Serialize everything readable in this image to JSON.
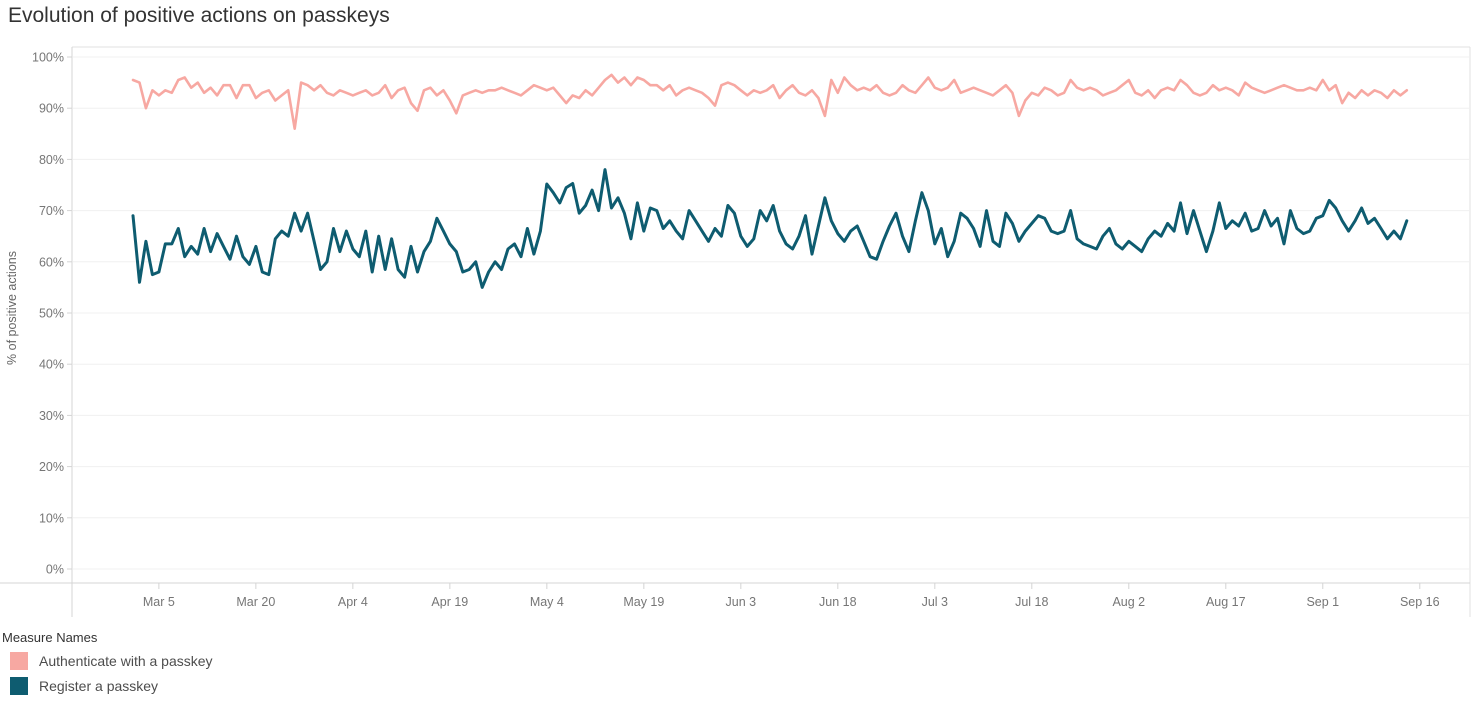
{
  "title": "Evolution of positive actions on passkeys",
  "legend": {
    "title": "Measure Names",
    "items": [
      {
        "label": "Authenticate with a passkey",
        "color": "#f7a8a2"
      },
      {
        "label": "Register a passkey",
        "color": "#0e5c70"
      }
    ]
  },
  "chart_data": {
    "type": "line",
    "title": "Evolution of positive actions on passkeys",
    "xlabel": "",
    "ylabel": "% of positive actions",
    "ylim": [
      0,
      100
    ],
    "grid": true,
    "legend_position": "bottom-left",
    "y_tick_labels": [
      "0%",
      "10%",
      "20%",
      "30%",
      "40%",
      "50%",
      "60%",
      "70%",
      "80%",
      "90%",
      "100%"
    ],
    "y_tick_values": [
      0,
      10,
      20,
      30,
      40,
      50,
      60,
      70,
      80,
      90,
      100
    ],
    "x_tick_labels": [
      "Mar 5",
      "Mar 20",
      "Apr 4",
      "Apr 19",
      "May 4",
      "May 19",
      "Jun 3",
      "Jun 18",
      "Jul 3",
      "Jul 18",
      "Aug 2",
      "Aug 17",
      "Sep 1",
      "Sep 16"
    ],
    "x_tick_day_index": [
      4,
      19,
      34,
      49,
      64,
      79,
      94,
      109,
      124,
      139,
      154,
      169,
      184,
      199
    ],
    "x_start_label": "Mar 1",
    "x_end_label": "Sep 14",
    "x_unit": "day",
    "series": [
      {
        "name": "Authenticate with a passkey",
        "color": "#f7a8a2",
        "stroke_width": 2.6,
        "values": [
          95.5,
          95,
          90,
          93.5,
          92.5,
          93.5,
          93,
          95.5,
          96,
          94,
          95,
          93,
          94,
          92.5,
          94.5,
          94.5,
          92,
          94.5,
          94.5,
          92,
          93,
          93.5,
          91.5,
          92.5,
          93.5,
          86,
          95,
          94.5,
          93.5,
          94.5,
          93,
          92.5,
          93.5,
          93,
          92.5,
          93,
          93.5,
          92.5,
          93,
          94.5,
          92,
          93.5,
          94,
          91,
          89.5,
          93.5,
          94,
          92.5,
          93.5,
          91.5,
          89,
          92.5,
          93,
          93.5,
          93,
          93.5,
          93.5,
          94,
          93.5,
          93,
          92.5,
          93.5,
          94.5,
          94,
          93.5,
          94,
          92.5,
          91,
          92.5,
          92,
          93.5,
          92.5,
          94,
          95.5,
          96.5,
          95,
          96,
          94.5,
          96,
          95.5,
          94.5,
          94.5,
          93.5,
          94.5,
          92.5,
          93.5,
          94,
          93.5,
          93,
          92,
          90.5,
          94.5,
          95,
          94.5,
          93.5,
          92.5,
          93.5,
          93,
          93.5,
          94.5,
          92,
          93.5,
          94.5,
          93,
          92.5,
          93.5,
          92,
          88.5,
          95.5,
          93,
          96,
          94.5,
          93.5,
          94,
          93.5,
          94.5,
          93,
          92.5,
          93,
          94.5,
          93.5,
          93,
          94.5,
          96,
          94,
          93.5,
          94,
          95.5,
          93,
          93.5,
          94,
          93.5,
          93,
          92.5,
          93.5,
          94.5,
          93,
          88.5,
          91.5,
          93,
          92.5,
          94,
          93.5,
          92.5,
          93,
          95.5,
          94,
          93.5,
          94,
          93.5,
          92.5,
          93,
          93.5,
          94.5,
          95.5,
          93,
          92.5,
          93.5,
          92,
          93.5,
          94,
          93.5,
          95.5,
          94.5,
          93,
          92.5,
          93,
          94.5,
          93.5,
          94,
          93.5,
          92.5,
          95,
          94,
          93.5,
          93,
          93.5,
          94,
          94.5,
          94,
          93.5,
          93.5,
          94,
          93.5,
          95.5,
          93.5,
          94.5,
          91,
          93,
          92,
          93.5,
          92.5,
          93.5,
          93,
          92,
          93.5,
          92.5,
          93.5
        ]
      },
      {
        "name": "Register a passkey",
        "color": "#0e5c70",
        "stroke_width": 3,
        "values": [
          69,
          56,
          64,
          57.5,
          58,
          63.5,
          63.5,
          66.5,
          61,
          63,
          61.5,
          66.5,
          62,
          65.5,
          63,
          60.5,
          65,
          61,
          59.5,
          63,
          58,
          57.5,
          64.5,
          66,
          65,
          69.5,
          66,
          69.5,
          64,
          58.5,
          60,
          66.5,
          62,
          66,
          62.5,
          61,
          66,
          58,
          65,
          58.5,
          64.5,
          58.5,
          57,
          63,
          58,
          62,
          64,
          68.5,
          66,
          63.5,
          62,
          58,
          58.5,
          60,
          55,
          58,
          60,
          58.5,
          62.5,
          63.5,
          61,
          66.5,
          61.5,
          66,
          75.2,
          73.5,
          71.5,
          74.5,
          75.3,
          69.5,
          71,
          74,
          70,
          78,
          70.5,
          72.5,
          69.5,
          64.5,
          71.5,
          66,
          70.5,
          70,
          66.5,
          68,
          66,
          64.5,
          70,
          68,
          66,
          64,
          66.5,
          65,
          71,
          69.5,
          65,
          63,
          64.5,
          70,
          68,
          71,
          66,
          63.5,
          62.5,
          65,
          69,
          61.5,
          67,
          72.5,
          68,
          65.5,
          64,
          66,
          67,
          64,
          61,
          60.5,
          64,
          67,
          69.5,
          65,
          62,
          68,
          73.5,
          70,
          63.5,
          66.5,
          61,
          64,
          69.5,
          68.5,
          66.5,
          63,
          70,
          64,
          63,
          69.5,
          67.5,
          64,
          66,
          67.5,
          69,
          68.5,
          66,
          65.5,
          66,
          70,
          64.5,
          63.5,
          63,
          62.5,
          65,
          66.5,
          63.5,
          62.5,
          64,
          63,
          62,
          64.5,
          66,
          65,
          67.5,
          66,
          71.5,
          65.5,
          70,
          66,
          62,
          66,
          71.5,
          66.5,
          68,
          67,
          69.5,
          66,
          66.5,
          70,
          67,
          68.5,
          63.5,
          70,
          66.5,
          65.5,
          66,
          68.5,
          69,
          72,
          70.5,
          68,
          66,
          68,
          70.5,
          67.5,
          68.5,
          66.5,
          64.5,
          66,
          64.5,
          68
        ]
      }
    ]
  },
  "colors": {
    "grid": "#f0f0f0",
    "frame": "#e0e0e0",
    "axis": "#d4d4d4",
    "tick_label": "#767676",
    "axis_title": "#666666",
    "title_text": "#333333"
  }
}
